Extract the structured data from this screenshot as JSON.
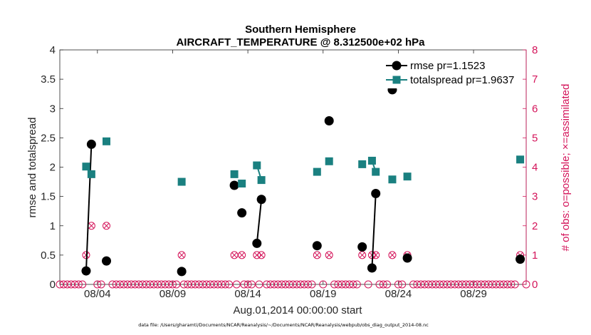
{
  "chart_data": {
    "type": "line",
    "title_line1": "Southern Hemisphere",
    "title_line2": "AIRCRAFT_TEMPERATURE @ 8.312500e+02 hPa",
    "xlabel": "Aug.01,2014 00:00:00 start",
    "ylabel_left": "rmse and totalspread",
    "ylabel_right": "# of obs: o=possible; ×=assimilated",
    "footnote": "data file: /Users/gharamti/Documents/NCAR/Reanalysis/~/Documents/NCAR/Reanalysis/webpub/obs_diag_output_2014-08.nc",
    "xlim": [
      0.5,
      31.5
    ],
    "ylim_left": [
      0,
      4
    ],
    "ylim_right": [
      0,
      8
    ],
    "xticks": [
      3,
      8,
      13,
      18,
      23,
      28
    ],
    "xtick_labels": [
      "08/04",
      "08/09",
      "08/14",
      "08/19",
      "08/24",
      "08/29"
    ],
    "yticks_left": [
      0,
      0.5,
      1,
      1.5,
      2,
      2.5,
      3,
      3.5,
      4
    ],
    "yticks_left_labels": [
      "0",
      "0.5",
      "1",
      "1.5",
      "2",
      "2.5",
      "3",
      "3.5",
      "4"
    ],
    "yticks_right": [
      0,
      1,
      2,
      3,
      4,
      5,
      6,
      7,
      8
    ],
    "yticks_right_labels": [
      "0",
      "1",
      "2",
      "3",
      "4",
      "5",
      "6",
      "7",
      "8"
    ],
    "colors": {
      "rmse": "#000000",
      "totalspread": "#1a8080",
      "obs": "#d4145a",
      "axis": "#262626"
    },
    "series": [
      {
        "name": "rmse",
        "legend": "rmse pr=1.1523",
        "points": [
          {
            "x": 2.25,
            "y": 0.23,
            "seg": 1
          },
          {
            "x": 2.6,
            "y": 2.39,
            "seg": 1
          },
          {
            "x": 3.6,
            "y": 0.4,
            "seg": 2
          },
          {
            "x": 8.6,
            "y": 0.22,
            "seg": 3
          },
          {
            "x": 12.1,
            "y": 1.69,
            "seg": 4
          },
          {
            "x": 12.6,
            "y": 1.22,
            "seg": 5
          },
          {
            "x": 13.6,
            "y": 0.7,
            "seg": 6
          },
          {
            "x": 13.9,
            "y": 1.45,
            "seg": 6
          },
          {
            "x": 17.6,
            "y": 0.66,
            "seg": 7
          },
          {
            "x": 18.4,
            "y": 2.79,
            "seg": 8
          },
          {
            "x": 20.6,
            "y": 0.64,
            "seg": 9
          },
          {
            "x": 21.25,
            "y": 0.28,
            "seg": 10
          },
          {
            "x": 21.5,
            "y": 1.55,
            "seg": 10
          },
          {
            "x": 22.6,
            "y": 3.32,
            "seg": 11
          },
          {
            "x": 23.6,
            "y": 0.45,
            "seg": 12
          },
          {
            "x": 31.1,
            "y": 0.43,
            "seg": 13
          }
        ]
      },
      {
        "name": "totalspread",
        "legend": "totalspread pr=1.9637",
        "points": [
          {
            "x": 2.25,
            "y": 2.01,
            "seg": 1
          },
          {
            "x": 2.6,
            "y": 1.88,
            "seg": 1
          },
          {
            "x": 3.6,
            "y": 2.44,
            "seg": 2
          },
          {
            "x": 8.6,
            "y": 1.75,
            "seg": 3
          },
          {
            "x": 12.1,
            "y": 1.88,
            "seg": 4
          },
          {
            "x": 12.6,
            "y": 1.72,
            "seg": 5
          },
          {
            "x": 13.6,
            "y": 2.03,
            "seg": 6
          },
          {
            "x": 13.9,
            "y": 1.78,
            "seg": 6
          },
          {
            "x": 17.6,
            "y": 1.92,
            "seg": 7
          },
          {
            "x": 18.4,
            "y": 2.1,
            "seg": 8
          },
          {
            "x": 20.6,
            "y": 2.05,
            "seg": 9
          },
          {
            "x": 21.25,
            "y": 2.11,
            "seg": 10
          },
          {
            "x": 21.5,
            "y": 1.92,
            "seg": 10
          },
          {
            "x": 22.6,
            "y": 1.79,
            "seg": 11
          },
          {
            "x": 23.6,
            "y": 1.84,
            "seg": 12
          },
          {
            "x": 31.1,
            "y": 2.13,
            "seg": 13
          }
        ]
      }
    ],
    "obs_count": {
      "nonzero": [
        {
          "x": 2.25,
          "count": 1
        },
        {
          "x": 2.6,
          "count": 2
        },
        {
          "x": 3.6,
          "count": 2
        },
        {
          "x": 8.6,
          "count": 1
        },
        {
          "x": 12.1,
          "count": 1
        },
        {
          "x": 12.6,
          "count": 1
        },
        {
          "x": 13.6,
          "count": 1
        },
        {
          "x": 13.9,
          "count": 1
        },
        {
          "x": 17.6,
          "count": 1
        },
        {
          "x": 18.4,
          "count": 1
        },
        {
          "x": 20.6,
          "count": 1
        },
        {
          "x": 21.25,
          "count": 1
        },
        {
          "x": 21.5,
          "count": 1
        },
        {
          "x": 22.6,
          "count": 1
        },
        {
          "x": 23.6,
          "count": 1
        },
        {
          "x": 31.1,
          "count": 1
        }
      ],
      "zero_step": 0.25,
      "zero_range": [
        0.5,
        31.5
      ]
    }
  }
}
